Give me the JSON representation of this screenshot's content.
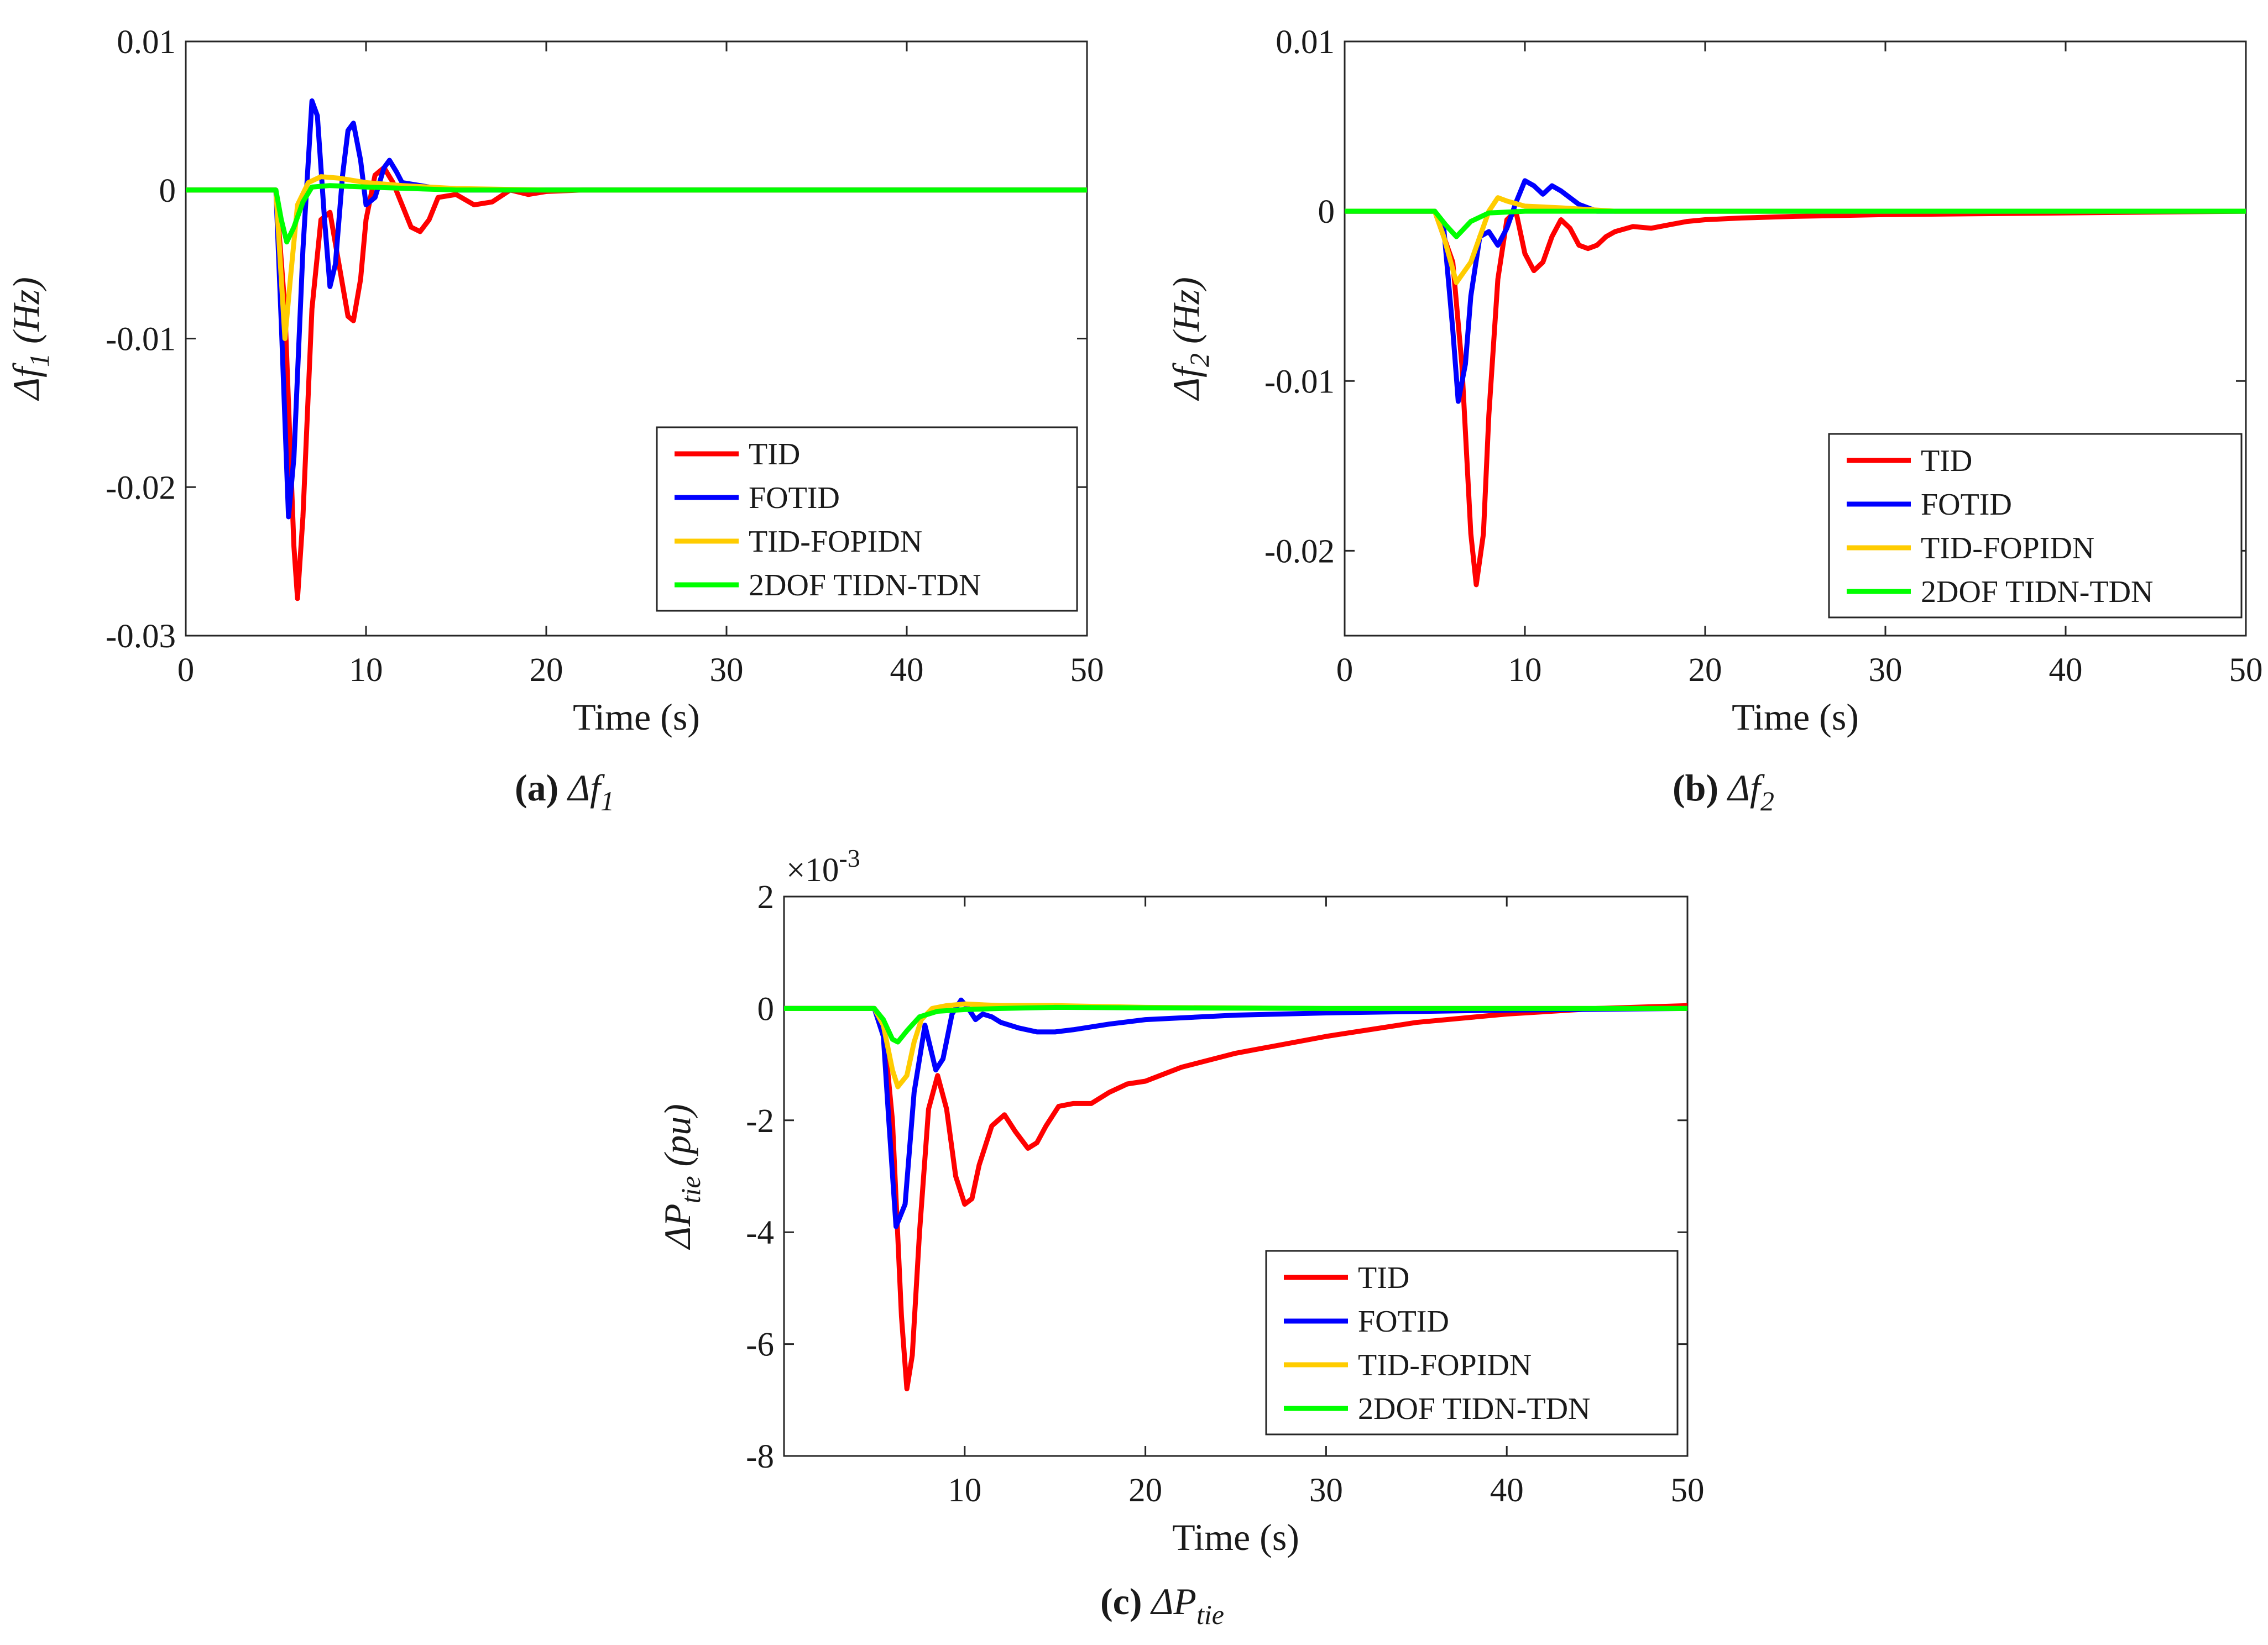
{
  "figure": {
    "colors": {
      "TID": "#ff0000",
      "FOTID": "#0000ff",
      "TID-FOPIDN": "#ffcc00",
      "2DOF TIDN-TDN": "#00ff00"
    }
  },
  "chart_data": [
    {
      "id": "a",
      "type": "line",
      "caption": {
        "letter": "(a)",
        "symbol": "Δf",
        "sub": "1"
      },
      "xlabel": "Time (s)",
      "ylabel": {
        "main": "Δf",
        "sub": "1",
        "unit": " (Hz)"
      },
      "xlim": [
        0,
        50
      ],
      "ylim": [
        -0.03,
        0.01
      ],
      "xticks": [
        0,
        10,
        20,
        30,
        40,
        50
      ],
      "xtick_labels": [
        "0",
        "10",
        "20",
        "30",
        "40",
        "50"
      ],
      "yticks": [
        -0.03,
        -0.02,
        -0.01,
        0,
        0.01
      ],
      "ytick_labels": [
        "-0.03",
        "-0.02",
        "-0.01",
        "0",
        "0.01"
      ],
      "exponent": "",
      "legend_position": "bottom-right",
      "legend": [
        "TID",
        "FOTID",
        "TID-FOPIDN",
        "2DOF TIDN-TDN"
      ],
      "series": [
        {
          "name": "TID",
          "x": [
            0,
            5,
            5.5,
            6,
            6.2,
            6.5,
            7,
            7.5,
            8,
            8.5,
            9,
            9.3,
            9.7,
            10,
            10.5,
            11,
            11.5,
            12,
            12.5,
            13,
            13.5,
            14,
            15,
            16,
            17,
            18,
            19,
            20,
            22,
            25,
            30,
            50
          ],
          "y": [
            0,
            0,
            -0.008,
            -0.024,
            -0.0275,
            -0.022,
            -0.008,
            -0.002,
            -0.0015,
            -0.005,
            -0.0085,
            -0.0088,
            -0.006,
            -0.002,
            0.001,
            0.0015,
            0.0005,
            -0.001,
            -0.0025,
            -0.0028,
            -0.002,
            -0.0005,
            -0.0003,
            -0.001,
            -0.0008,
            0,
            -0.0003,
            -0.0001,
            0,
            0,
            0,
            0
          ]
        },
        {
          "name": "FOTID",
          "x": [
            0,
            5,
            5.3,
            5.7,
            6,
            6.5,
            7,
            7.3,
            7.7,
            8,
            8.3,
            8.7,
            9,
            9.3,
            9.7,
            10,
            10.5,
            11,
            11.3,
            11.7,
            12,
            13,
            14,
            15,
            20,
            50
          ],
          "y": [
            0,
            0,
            -0.009,
            -0.022,
            -0.018,
            -0.004,
            0.006,
            0.005,
            -0.002,
            -0.0065,
            -0.005,
            0.001,
            0.004,
            0.0045,
            0.002,
            -0.001,
            -0.0005,
            0.0015,
            0.002,
            0.0012,
            0.0005,
            0.0003,
            0.0001,
            0,
            0,
            0
          ]
        },
        {
          "name": "TID-FOPIDN",
          "x": [
            0,
            5,
            5.3,
            5.5,
            5.8,
            6.2,
            6.8,
            7.5,
            8.5,
            10,
            12,
            15,
            20,
            50
          ],
          "y": [
            0,
            0,
            -0.006,
            -0.01,
            -0.006,
            -0.001,
            0.0005,
            0.0009,
            0.0008,
            0.0005,
            0.0003,
            0.0001,
            0,
            0
          ]
        },
        {
          "name": "2DOF TIDN-TDN",
          "x": [
            0,
            5,
            5.3,
            5.6,
            6,
            6.5,
            7,
            8,
            10,
            15,
            50
          ],
          "y": [
            0,
            0,
            -0.002,
            -0.0035,
            -0.0025,
            -0.0008,
            0.0002,
            0.0003,
            0.0002,
            0,
            0
          ]
        }
      ]
    },
    {
      "id": "b",
      "type": "line",
      "caption": {
        "letter": "(b)",
        "symbol": "Δf",
        "sub": "2"
      },
      "xlabel": "Time (s)",
      "ylabel": {
        "main": "Δf",
        "sub": "2",
        "unit": " (Hz)"
      },
      "xlim": [
        0,
        50
      ],
      "ylim": [
        -0.025,
        0.01
      ],
      "xticks": [
        0,
        10,
        20,
        30,
        40,
        50
      ],
      "xtick_labels": [
        "0",
        "10",
        "20",
        "30",
        "40",
        "50"
      ],
      "yticks": [
        -0.02,
        -0.01,
        0,
        0.01
      ],
      "ytick_labels": [
        "-0.02",
        "-0.01",
        "0",
        "0.01"
      ],
      "exponent": "",
      "legend_position": "bottom-right",
      "legend": [
        "TID",
        "FOTID",
        "TID-FOPIDN",
        "2DOF TIDN-TDN"
      ],
      "series": [
        {
          "name": "TID",
          "x": [
            0,
            5,
            6,
            6.5,
            7,
            7.3,
            7.7,
            8,
            8.5,
            9,
            9.5,
            10,
            10.5,
            11,
            11.5,
            12,
            12.5,
            13,
            13.5,
            14,
            14.5,
            15,
            16,
            17,
            18,
            19,
            20,
            22,
            25,
            30,
            50
          ],
          "y": [
            0,
            0,
            -0.003,
            -0.009,
            -0.019,
            -0.022,
            -0.019,
            -0.012,
            -0.004,
            -0.0005,
            0,
            -0.0025,
            -0.0035,
            -0.003,
            -0.0015,
            -0.0005,
            -0.001,
            -0.002,
            -0.0022,
            -0.002,
            -0.0015,
            -0.0012,
            -0.0009,
            -0.001,
            -0.0008,
            -0.0006,
            -0.0005,
            -0.0004,
            -0.0003,
            -0.0002,
            0
          ]
        },
        {
          "name": "FOTID",
          "x": [
            0,
            5,
            5.5,
            6,
            6.3,
            6.7,
            7,
            7.5,
            8,
            8.5,
            9,
            9.5,
            10,
            10.5,
            11,
            11.5,
            12,
            12.5,
            13,
            14,
            15,
            20,
            50
          ],
          "y": [
            0,
            0,
            -0.001,
            -0.007,
            -0.0112,
            -0.009,
            -0.005,
            -0.0015,
            -0.0012,
            -0.002,
            -0.001,
            0.0005,
            0.0018,
            0.0015,
            0.001,
            0.0015,
            0.0012,
            0.0008,
            0.0004,
            0,
            0,
            0,
            0
          ]
        },
        {
          "name": "TID-FOPIDN",
          "x": [
            0,
            5,
            5.5,
            6.2,
            7,
            7.5,
            8,
            8.5,
            9,
            10,
            12,
            15,
            20,
            50
          ],
          "y": [
            0,
            0,
            -0.0015,
            -0.0042,
            -0.003,
            -0.0015,
            0,
            0.0008,
            0.0006,
            0.0003,
            0.0002,
            0,
            0,
            0
          ]
        },
        {
          "name": "2DOF TIDN-TDN",
          "x": [
            0,
            5,
            5.6,
            6.2,
            7,
            8,
            10,
            15,
            50
          ],
          "y": [
            0,
            0,
            -0.0008,
            -0.0015,
            -0.0006,
            -0.0001,
            0,
            0,
            0
          ]
        }
      ]
    },
    {
      "id": "c",
      "type": "line",
      "caption": {
        "letter": "(c)",
        "symbol": "ΔP",
        "sub": "tie"
      },
      "xlabel": "Time (s)",
      "ylabel": {
        "main": "ΔP",
        "sub": "tie",
        "unit": " (pu)"
      },
      "xlim": [
        0,
        50
      ],
      "ylim": [
        -8,
        2
      ],
      "xticks": [
        10,
        20,
        30,
        40,
        50
      ],
      "xtick_labels": [
        "10",
        "20",
        "30",
        "40",
        "50"
      ],
      "yticks": [
        -8,
        -6,
        -4,
        -2,
        0,
        2
      ],
      "ytick_labels": [
        "-8",
        "-6",
        "-4",
        "-2",
        "0",
        "2"
      ],
      "exponent": "×10",
      "exponent_power": "-3",
      "legend_position": "bottom-right",
      "legend": [
        "TID",
        "FOTID",
        "TID-FOPIDN",
        "2DOF TIDN-TDN"
      ],
      "series": [
        {
          "name": "TID",
          "x": [
            0,
            5,
            5.5,
            6,
            6.5,
            6.8,
            7.1,
            7.5,
            8,
            8.5,
            9,
            9.5,
            10,
            10.4,
            10.8,
            11.5,
            12.2,
            12.8,
            13.5,
            14,
            14.5,
            15.2,
            16,
            17,
            18,
            19,
            20,
            22,
            25,
            30,
            35,
            40,
            45,
            50
          ],
          "y": [
            0,
            0,
            -0.3,
            -2,
            -5.5,
            -6.8,
            -6.2,
            -4,
            -1.8,
            -1.2,
            -1.8,
            -3,
            -3.5,
            -3.4,
            -2.8,
            -2.1,
            -1.9,
            -2.2,
            -2.5,
            -2.4,
            -2.1,
            -1.75,
            -1.7,
            -1.7,
            -1.5,
            -1.35,
            -1.3,
            -1.05,
            -0.8,
            -0.5,
            -0.25,
            -0.1,
            0,
            0.05
          ]
        },
        {
          "name": "FOTID",
          "x": [
            0,
            5,
            5.5,
            5.8,
            6.2,
            6.7,
            7.2,
            7.8,
            8.4,
            8.8,
            9.3,
            9.8,
            10.2,
            10.6,
            11,
            11.5,
            12,
            13,
            14,
            15,
            16,
            18,
            20,
            25,
            30,
            40,
            50
          ],
          "y": [
            0,
            0,
            -0.5,
            -2,
            -3.9,
            -3.5,
            -1.5,
            -0.3,
            -1.1,
            -0.9,
            -0.1,
            0.15,
            0,
            -0.2,
            -0.1,
            -0.15,
            -0.25,
            -0.35,
            -0.42,
            -0.42,
            -0.38,
            -0.28,
            -0.2,
            -0.12,
            -0.08,
            -0.03,
            0
          ]
        },
        {
          "name": "TID-FOPIDN",
          "x": [
            0,
            5,
            5.5,
            6,
            6.3,
            6.8,
            7.2,
            7.6,
            8.2,
            9,
            10,
            12,
            15,
            20,
            30,
            50
          ],
          "y": [
            0,
            0,
            -0.3,
            -1.1,
            -1.4,
            -1.2,
            -0.6,
            -0.2,
            0,
            0.05,
            0.08,
            0.05,
            0.05,
            0.02,
            0,
            0
          ]
        },
        {
          "name": "2DOF TIDN-TDN",
          "x": [
            0,
            5,
            5.5,
            6,
            6.3,
            6.8,
            7.5,
            8.5,
            10,
            12,
            15,
            20,
            30,
            50
          ],
          "y": [
            0,
            0,
            -0.2,
            -0.55,
            -0.6,
            -0.4,
            -0.15,
            -0.05,
            -0.02,
            0,
            0.02,
            0.01,
            0,
            0
          ]
        }
      ]
    }
  ]
}
